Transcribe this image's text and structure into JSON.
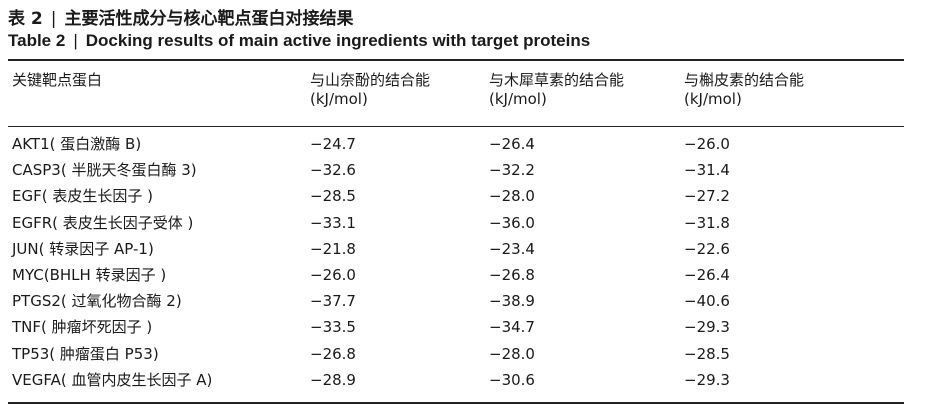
{
  "caption": {
    "zh_label": "表 2",
    "zh_separator": "|",
    "zh_title": "主要活性成分与核心靶点蛋白对接结果",
    "en_label": "Table 2",
    "en_separator": "|",
    "en_title": "Docking results of main active ingredients with target proteins"
  },
  "table": {
    "headers": [
      {
        "label": "关键靶点蛋白",
        "unit": ""
      },
      {
        "label": "与山奈酚的结合能",
        "unit": "(kJ/mol)"
      },
      {
        "label": "与木犀草素的结合能",
        "unit": "(kJ/mol)"
      },
      {
        "label": "与槲皮素的结合能",
        "unit": "(kJ/mol)"
      }
    ],
    "rows": [
      [
        "AKT1( 蛋白激酶 B)",
        "−24.7",
        "−26.4",
        "−26.0"
      ],
      [
        "CASP3( 半胱天冬蛋白酶 3)",
        "−32.6",
        "−32.2",
        "−31.4"
      ],
      [
        "EGF( 表皮生长因子 )",
        "−28.5",
        "−28.0",
        "−27.2"
      ],
      [
        "EGFR( 表皮生长因子受体 )",
        "−33.1",
        "−36.0",
        "−31.8"
      ],
      [
        "JUN( 转录因子 AP-1)",
        "−21.8",
        "−23.4",
        "−22.6"
      ],
      [
        "MYC(BHLH 转录因子 )",
        "−26.0",
        "−26.8",
        "−26.4"
      ],
      [
        "PTGS2( 过氧化物合酶 2)",
        "−37.7",
        "−38.9",
        "−40.6"
      ],
      [
        "TNF( 肿瘤坏死因子 )",
        "−33.5",
        "−34.7",
        "−29.3"
      ],
      [
        "TP53( 肿瘤蛋白 P53)",
        "−26.8",
        "−28.0",
        "−28.5"
      ],
      [
        "VEGFA( 血管内皮生长因子 A)",
        "−28.9",
        "−30.6",
        "−29.3"
      ]
    ]
  }
}
